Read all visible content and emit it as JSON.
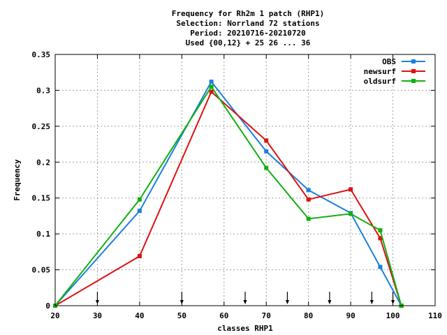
{
  "chart_data": {
    "type": "line",
    "title_lines": [
      "Frequency  for Rh2m 1 patch (RHP1)",
      "Selection: Norrland     72 stations",
      "Period: 20210716-20210720",
      "Used {00,12} + 25 26 ... 36"
    ],
    "xlabel": "classes RHP1",
    "ylabel": "Frequency",
    "xlim": [
      20,
      110
    ],
    "ylim": [
      0,
      0.35
    ],
    "xticks": [
      20,
      30,
      40,
      50,
      60,
      70,
      80,
      90,
      100,
      110
    ],
    "yticks": [
      0,
      0.05,
      0.1,
      0.15,
      0.2,
      0.25,
      0.3,
      0.35
    ],
    "ytick_labels": [
      "0",
      "0.05",
      "0.1",
      "0.15",
      "0.2",
      "0.25",
      "0.3",
      "0.35"
    ],
    "grid": true,
    "legend_position": "top-right",
    "class_markers": [
      30,
      50,
      65,
      75,
      85,
      95,
      100
    ],
    "series": [
      {
        "name": "OBS",
        "color": "#1c7fe0",
        "points": [
          [
            20,
            0
          ],
          [
            40,
            0.132
          ],
          [
            57,
            0.312
          ],
          [
            70,
            0.215
          ],
          [
            80,
            0.161
          ],
          [
            90,
            0.129
          ],
          [
            97,
            0.054
          ],
          [
            102,
            0
          ]
        ]
      },
      {
        "name": "newsurf",
        "color": "#e01010",
        "points": [
          [
            20,
            0
          ],
          [
            40,
            0.069
          ],
          [
            57,
            0.298
          ],
          [
            70,
            0.23
          ],
          [
            80,
            0.148
          ],
          [
            90,
            0.162
          ],
          [
            97,
            0.094
          ],
          [
            102,
            0
          ]
        ]
      },
      {
        "name": "oldsurf",
        "color": "#10b010",
        "points": [
          [
            20,
            0
          ],
          [
            40,
            0.148
          ],
          [
            57,
            0.305
          ],
          [
            70,
            0.192
          ],
          [
            80,
            0.121
          ],
          [
            90,
            0.128
          ],
          [
            97,
            0.105
          ],
          [
            102,
            0
          ]
        ]
      }
    ]
  }
}
